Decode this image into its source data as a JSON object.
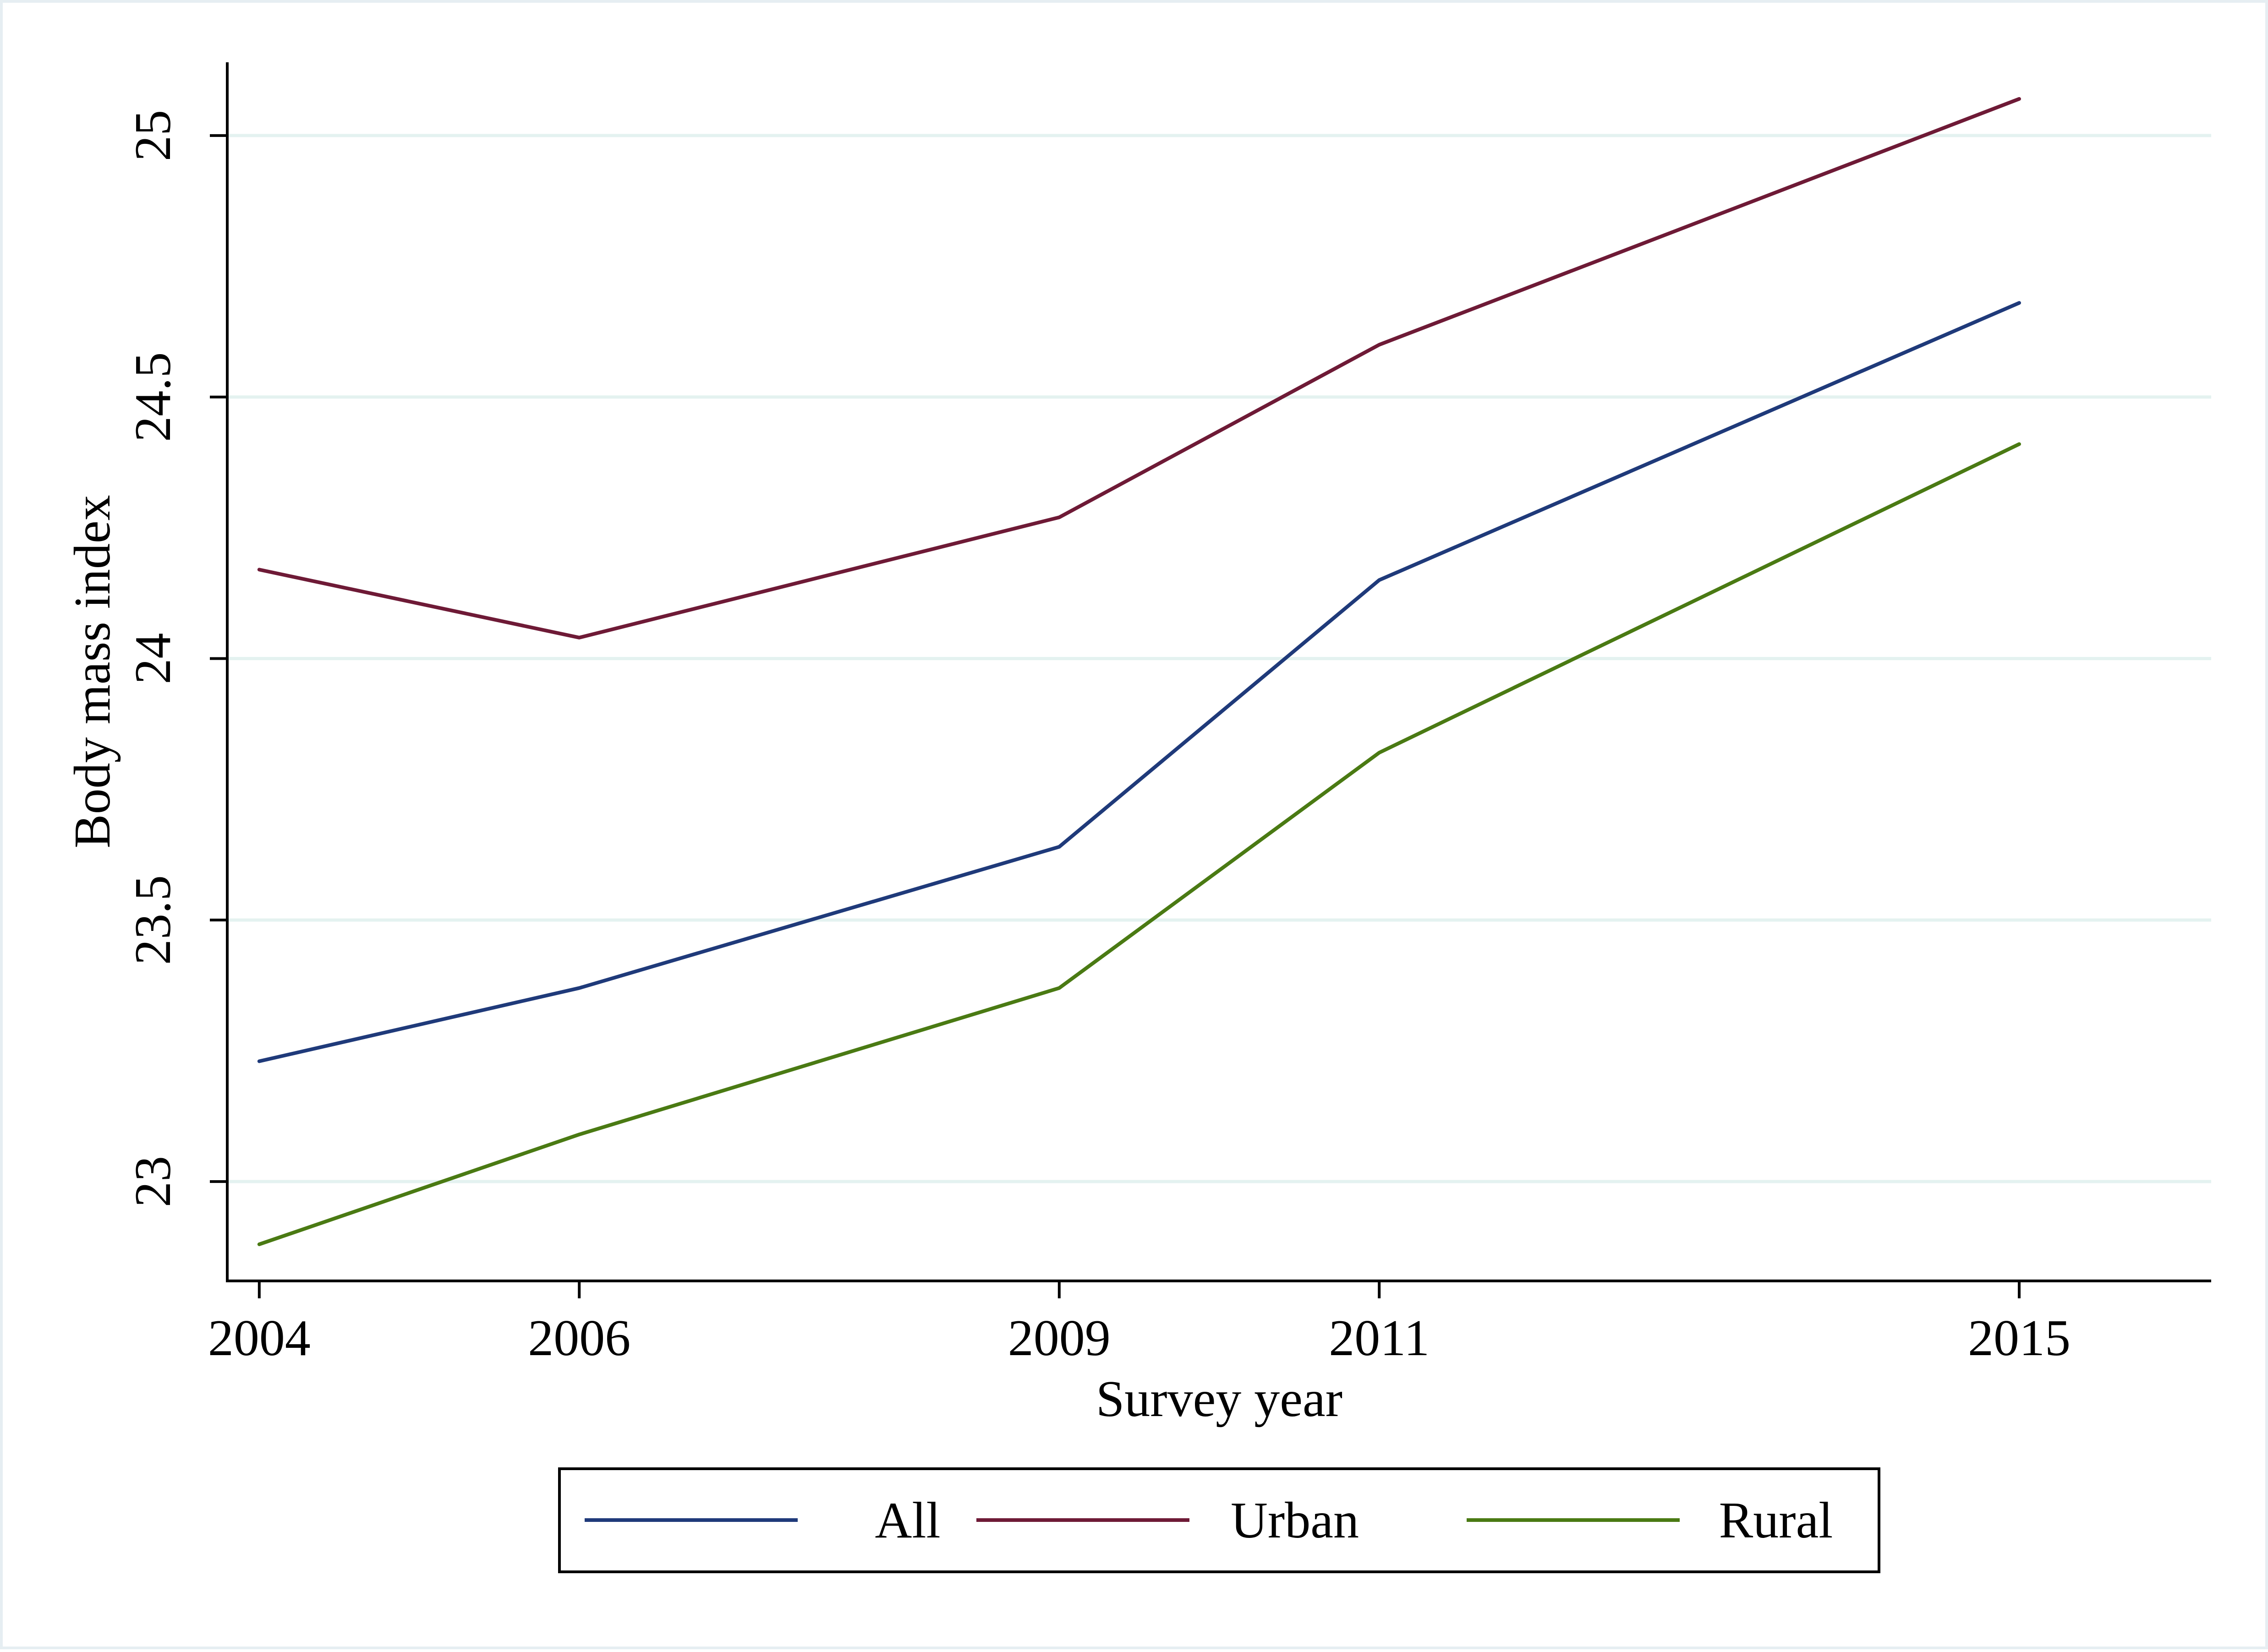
{
  "chart_data": {
    "type": "line",
    "title": "",
    "xlabel": "Survey year",
    "ylabel": "Body mass index",
    "x": [
      2004,
      2006,
      2009,
      2011,
      2015
    ],
    "x_ticks": [
      "2004",
      "2006",
      "2009",
      "2011",
      "2015"
    ],
    "y_ticks": [
      "23",
      "23.5",
      "24",
      "24.5",
      "25"
    ],
    "xlim": [
      2003.8,
      2016.2
    ],
    "ylim": [
      22.81,
      25.14
    ],
    "grid": true,
    "legend_position": "bottom",
    "series": [
      {
        "name": "All",
        "color": "#1f3a7a",
        "values": [
          23.23,
          23.37,
          23.64,
          24.15,
          24.68
        ]
      },
      {
        "name": "Urban",
        "color": "#6e1a36",
        "values": [
          24.17,
          24.04,
          24.27,
          24.6,
          25.07
        ]
      },
      {
        "name": "Rural",
        "color": "#4a7a13",
        "values": [
          22.88,
          23.09,
          23.37,
          23.82,
          24.41
        ]
      }
    ]
  }
}
